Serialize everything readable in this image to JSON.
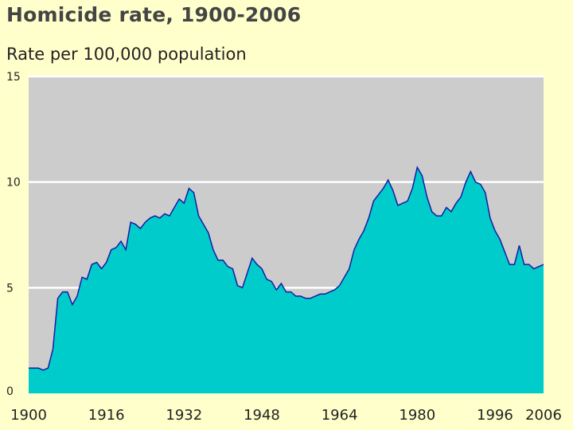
{
  "chart_data": {
    "type": "area",
    "title": "Homicide rate, 1900-2006",
    "ylabel": "Rate per 100,000 population",
    "xlabel": "",
    "xlim": [
      1900,
      2006
    ],
    "ylim": [
      0,
      15
    ],
    "yticks": [
      0,
      5,
      10,
      15
    ],
    "ytick_labels": [
      "0",
      "5",
      "10",
      "15"
    ],
    "xticks": [
      1900,
      1916,
      1932,
      1948,
      1964,
      1980,
      1996,
      2006
    ],
    "xtick_labels": [
      "1900",
      "1916",
      "1932",
      "1948",
      "1964",
      "1980",
      "1996",
      "2006"
    ],
    "grid": true,
    "colors": {
      "fill": "#00cccc",
      "line": "#1a1aa0",
      "plot_bg": "#cccccc",
      "grid": "#ffffff",
      "page_bg": "#ffffcc"
    },
    "x": [
      1900,
      1901,
      1902,
      1903,
      1904,
      1905,
      1906,
      1907,
      1908,
      1909,
      1910,
      1911,
      1912,
      1913,
      1914,
      1915,
      1916,
      1917,
      1918,
      1919,
      1920,
      1921,
      1922,
      1923,
      1924,
      1925,
      1926,
      1927,
      1928,
      1929,
      1930,
      1931,
      1932,
      1933,
      1934,
      1935,
      1936,
      1937,
      1938,
      1939,
      1940,
      1941,
      1942,
      1943,
      1944,
      1945,
      1946,
      1947,
      1948,
      1949,
      1950,
      1951,
      1952,
      1953,
      1954,
      1955,
      1956,
      1957,
      1958,
      1959,
      1960,
      1961,
      1962,
      1963,
      1964,
      1965,
      1966,
      1967,
      1968,
      1969,
      1970,
      1971,
      1972,
      1973,
      1974,
      1975,
      1976,
      1977,
      1978,
      1979,
      1980,
      1981,
      1982,
      1983,
      1984,
      1985,
      1986,
      1987,
      1988,
      1989,
      1990,
      1991,
      1992,
      1993,
      1994,
      1995,
      1996,
      1997,
      1998,
      1999,
      2000,
      2001,
      2002,
      2003,
      2004,
      2005,
      2006
    ],
    "values": [
      1.2,
      1.2,
      1.2,
      1.1,
      1.2,
      2.1,
      4.5,
      4.8,
      4.8,
      4.2,
      4.6,
      5.5,
      5.4,
      6.1,
      6.2,
      5.9,
      6.2,
      6.8,
      6.9,
      7.2,
      6.8,
      8.1,
      8.0,
      7.8,
      8.1,
      8.3,
      8.4,
      8.3,
      8.5,
      8.4,
      8.8,
      9.2,
      9.0,
      9.7,
      9.5,
      8.4,
      8.0,
      7.6,
      6.8,
      6.3,
      6.3,
      6.0,
      5.9,
      5.1,
      5.0,
      5.7,
      6.4,
      6.1,
      5.9,
      5.4,
      5.3,
      4.9,
      5.2,
      4.8,
      4.8,
      4.6,
      4.6,
      4.5,
      4.5,
      4.6,
      4.7,
      4.7,
      4.8,
      4.9,
      5.1,
      5.5,
      5.9,
      6.8,
      7.3,
      7.7,
      8.3,
      9.1,
      9.4,
      9.7,
      10.1,
      9.6,
      8.9,
      9.0,
      9.1,
      9.7,
      10.7,
      10.3,
      9.3,
      8.6,
      8.4,
      8.4,
      8.8,
      8.6,
      9.0,
      9.3,
      10.0,
      10.5,
      10.0,
      9.9,
      9.5,
      8.3,
      7.7,
      7.3,
      6.7,
      6.1,
      6.1,
      7.0,
      6.1,
      6.1,
      5.9,
      6.0,
      6.1
    ]
  }
}
